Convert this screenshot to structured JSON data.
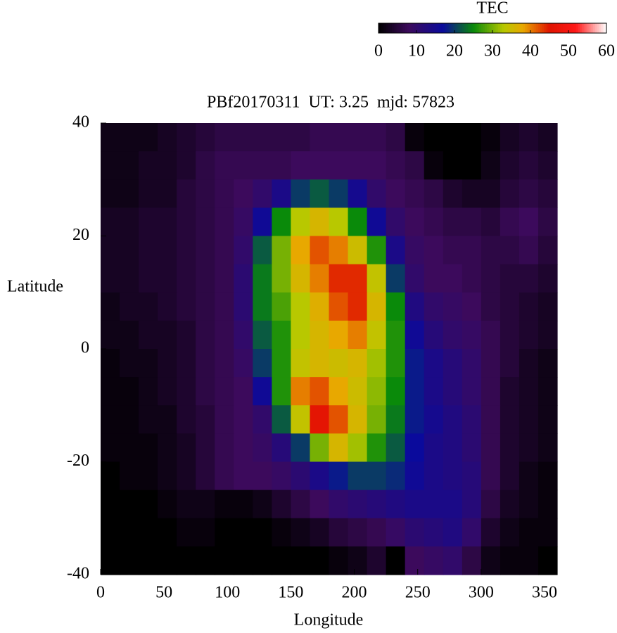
{
  "chart_data": {
    "type": "heatmap",
    "title": "PBf20170311  UT: 3.25  mjd: 57823",
    "x_label": "Longitude",
    "y_label": "Latitude",
    "colorbar_label": "TEC",
    "xlim": [
      0,
      360
    ],
    "ylim": [
      -40,
      40
    ],
    "xticks": [
      0,
      50,
      100,
      150,
      200,
      250,
      300,
      350
    ],
    "yticks": [
      -40,
      -20,
      0,
      20,
      40
    ],
    "clim": [
      0,
      60
    ],
    "cticks": [
      0,
      10,
      20,
      30,
      40,
      50,
      60
    ],
    "colorscale": [
      [
        0,
        "#000000"
      ],
      [
        8,
        "#3c0a5c"
      ],
      [
        17,
        "#0a0a9c"
      ],
      [
        25,
        "#0a8a0a"
      ],
      [
        33,
        "#b8c800"
      ],
      [
        38,
        "#e8a800"
      ],
      [
        45,
        "#e01400"
      ],
      [
        52,
        "#ff1818"
      ],
      [
        60,
        "#ffffff"
      ]
    ],
    "x": [
      7.5,
      22.5,
      37.5,
      52.5,
      67.5,
      82.5,
      97.5,
      112.5,
      127.5,
      142.5,
      157.5,
      172.5,
      187.5,
      202.5,
      217.5,
      232.5,
      247.5,
      262.5,
      277.5,
      292.5,
      307.5,
      322.5,
      337.5,
      352.5
    ],
    "y": [
      37.5,
      32.5,
      27.5,
      22.5,
      17.5,
      12.5,
      7.5,
      2.5,
      -2.5,
      -7.5,
      -12.5,
      -17.5,
      -22.5,
      -27.5,
      -32.5,
      -37.5
    ],
    "z": [
      [
        2,
        2,
        2,
        3,
        4,
        5,
        6,
        6,
        6,
        6,
        6,
        7,
        7,
        7,
        7,
        6,
        1,
        0,
        0,
        0,
        1,
        3,
        4,
        3
      ],
      [
        2,
        2,
        3,
        3,
        4,
        6,
        7,
        7,
        7,
        7,
        8,
        8,
        8,
        8,
        8,
        7,
        6,
        1,
        0,
        0,
        2,
        4,
        5,
        4
      ],
      [
        2,
        2,
        3,
        3,
        5,
        6,
        7,
        8,
        10,
        14,
        20,
        22,
        20,
        15,
        10,
        8,
        7,
        6,
        4,
        3,
        3,
        5,
        6,
        5
      ],
      [
        3,
        3,
        4,
        4,
        5,
        6,
        7,
        9,
        16,
        25,
        33,
        36,
        33,
        25,
        16,
        10,
        8,
        7,
        6,
        6,
        5,
        7,
        8,
        6
      ],
      [
        3,
        3,
        4,
        4,
        5,
        6,
        7,
        10,
        22,
        30,
        38,
        42,
        40,
        35,
        26,
        14,
        9,
        8,
        7,
        7,
        6,
        6,
        7,
        5
      ],
      [
        3,
        3,
        4,
        4,
        5,
        6,
        7,
        11,
        24,
        30,
        36,
        40,
        44,
        44,
        34,
        20,
        10,
        8,
        8,
        7,
        6,
        5,
        5,
        4
      ],
      [
        2,
        3,
        3,
        4,
        5,
        6,
        7,
        11,
        24,
        28,
        33,
        37,
        42,
        44,
        36,
        25,
        13,
        10,
        9,
        8,
        6,
        5,
        4,
        3
      ],
      [
        2,
        2,
        3,
        3,
        4,
        6,
        7,
        10,
        22,
        26,
        33,
        36,
        38,
        40,
        34,
        26,
        16,
        12,
        10,
        9,
        7,
        5,
        4,
        3
      ],
      [
        1,
        2,
        2,
        3,
        4,
        6,
        7,
        9,
        20,
        26,
        34,
        36,
        35,
        36,
        32,
        26,
        18,
        14,
        12,
        10,
        7,
        5,
        3,
        2
      ],
      [
        1,
        1,
        2,
        3,
        4,
        6,
        7,
        8,
        16,
        26,
        40,
        42,
        38,
        35,
        31,
        25,
        18,
        14,
        12,
        10,
        7,
        4,
        3,
        2
      ],
      [
        1,
        1,
        2,
        2,
        4,
        5,
        7,
        8,
        10,
        22,
        34,
        46,
        42,
        36,
        30,
        24,
        18,
        15,
        13,
        11,
        7,
        4,
        3,
        2
      ],
      [
        1,
        1,
        1,
        2,
        3,
        5,
        7,
        8,
        9,
        12,
        20,
        30,
        36,
        32,
        26,
        22,
        17,
        14,
        13,
        11,
        7,
        4,
        3,
        2
      ],
      [
        0,
        1,
        1,
        2,
        3,
        5,
        7,
        8,
        8,
        9,
        11,
        14,
        18,
        20,
        20,
        19,
        16,
        14,
        13,
        12,
        7,
        4,
        2,
        1
      ],
      [
        0,
        0,
        0,
        1,
        2,
        2,
        1,
        1,
        2,
        4,
        6,
        8,
        10,
        11,
        12,
        13,
        14,
        14,
        14,
        12,
        6,
        3,
        2,
        1
      ],
      [
        0,
        0,
        0,
        0,
        1,
        1,
        0,
        0,
        0,
        1,
        2,
        3,
        5,
        6,
        7,
        9,
        11,
        12,
        13,
        10,
        4,
        2,
        1,
        1
      ],
      [
        0,
        0,
        0,
        0,
        0,
        0,
        0,
        0,
        0,
        0,
        0,
        0,
        1,
        2,
        4,
        0,
        8,
        9,
        10,
        6,
        2,
        1,
        1,
        0
      ]
    ]
  }
}
